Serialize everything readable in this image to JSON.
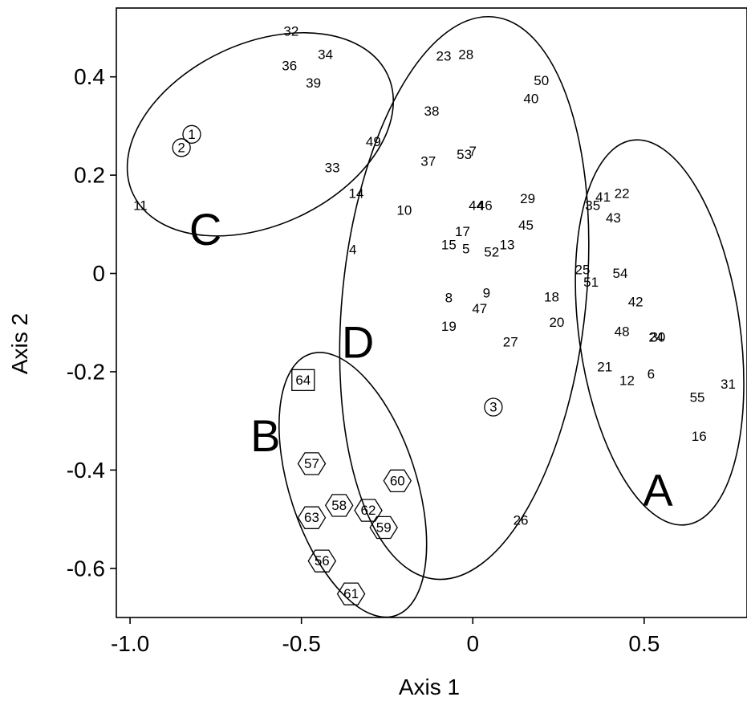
{
  "chart_data": {
    "type": "scatter",
    "title": "",
    "xlabel": "Axis 1",
    "ylabel": "Axis 2",
    "xlim": [
      -1.04,
      0.8
    ],
    "ylim": [
      -0.7,
      0.54
    ],
    "x_ticks": [
      -1.0,
      -0.5,
      0,
      0.5
    ],
    "x_tick_labels": [
      "-1.0",
      "-0.5",
      "0",
      "0.5"
    ],
    "y_ticks": [
      -0.6,
      -0.4,
      -0.2,
      0,
      0.2,
      0.4
    ],
    "y_tick_labels": [
      "-0.6",
      "-0.4",
      "-0.2",
      "0",
      "0.2",
      "0.4"
    ],
    "grid": false,
    "groups": [
      {
        "label": "A",
        "cx": 0.545,
        "cy": -0.12,
        "rx": 0.235,
        "ry": 0.395,
        "angle": -8,
        "label_x": 0.54,
        "label_y": -0.44
      },
      {
        "label": "B",
        "cx": -0.35,
        "cy": -0.43,
        "rx": 0.185,
        "ry": 0.28,
        "angle": -18,
        "label_x": -0.605,
        "label_y": -0.33
      },
      {
        "label": "C",
        "cx": -0.62,
        "cy": 0.283,
        "rx": 0.41,
        "ry": 0.185,
        "angle": -25,
        "label_x": -0.78,
        "label_y": 0.09
      },
      {
        "label": "D",
        "cx": -0.025,
        "cy": -0.05,
        "rx": 0.355,
        "ry": 0.575,
        "angle": 6,
        "label_x": -0.335,
        "label_y": -0.14
      }
    ],
    "points": [
      {
        "label": "1",
        "x": -0.82,
        "y": 0.283,
        "marker": "circle"
      },
      {
        "label": "2",
        "x": -0.85,
        "y": 0.256,
        "marker": "circle"
      },
      {
        "label": "3",
        "x": 0.06,
        "y": -0.272,
        "marker": "circle"
      },
      {
        "label": "4",
        "x": -0.35,
        "y": 0.048,
        "marker": "none"
      },
      {
        "label": "5",
        "x": -0.02,
        "y": 0.05,
        "marker": "none"
      },
      {
        "label": "6",
        "x": 0.52,
        "y": -0.205,
        "marker": "none"
      },
      {
        "label": "7",
        "x": 0.0,
        "y": 0.248,
        "marker": "none"
      },
      {
        "label": "8",
        "x": -0.07,
        "y": -0.05,
        "marker": "none"
      },
      {
        "label": "9",
        "x": 0.04,
        "y": -0.04,
        "marker": "none"
      },
      {
        "label": "10",
        "x": -0.2,
        "y": 0.128,
        "marker": "none"
      },
      {
        "label": "11",
        "x": -0.97,
        "y": 0.138,
        "marker": "none"
      },
      {
        "label": "12",
        "x": 0.45,
        "y": -0.218,
        "marker": "none"
      },
      {
        "label": "13",
        "x": 0.1,
        "y": 0.058,
        "marker": "none"
      },
      {
        "label": "14",
        "x": -0.34,
        "y": 0.163,
        "marker": "none"
      },
      {
        "label": "15",
        "x": -0.07,
        "y": 0.058,
        "marker": "none"
      },
      {
        "label": "16",
        "x": 0.66,
        "y": -0.332,
        "marker": "none"
      },
      {
        "label": "17",
        "x": -0.03,
        "y": 0.085,
        "marker": "none"
      },
      {
        "label": "18",
        "x": 0.23,
        "y": -0.048,
        "marker": "none"
      },
      {
        "label": "19",
        "x": -0.07,
        "y": -0.108,
        "marker": "none"
      },
      {
        "label": "20",
        "x": 0.245,
        "y": -0.1,
        "marker": "none"
      },
      {
        "label": "21",
        "x": 0.385,
        "y": -0.19,
        "marker": "none"
      },
      {
        "label": "22",
        "x": 0.435,
        "y": 0.163,
        "marker": "none"
      },
      {
        "label": "23",
        "x": -0.085,
        "y": 0.442,
        "marker": "none"
      },
      {
        "label": "24",
        "x": 0.535,
        "y": -0.13,
        "marker": "none"
      },
      {
        "label": "25",
        "x": 0.32,
        "y": 0.007,
        "marker": "none"
      },
      {
        "label": "26",
        "x": 0.14,
        "y": -0.502,
        "marker": "none"
      },
      {
        "label": "27",
        "x": 0.11,
        "y": -0.14,
        "marker": "none"
      },
      {
        "label": "28",
        "x": -0.02,
        "y": 0.445,
        "marker": "none"
      },
      {
        "label": "29",
        "x": 0.16,
        "y": 0.152,
        "marker": "none"
      },
      {
        "label": "30",
        "x": 0.54,
        "y": -0.13,
        "marker": "none"
      },
      {
        "label": "31",
        "x": 0.745,
        "y": -0.225,
        "marker": "none"
      },
      {
        "label": "32",
        "x": -0.53,
        "y": 0.493,
        "marker": "none"
      },
      {
        "label": "33",
        "x": -0.41,
        "y": 0.215,
        "marker": "none"
      },
      {
        "label": "34",
        "x": -0.43,
        "y": 0.445,
        "marker": "none"
      },
      {
        "label": "35",
        "x": 0.35,
        "y": 0.138,
        "marker": "none"
      },
      {
        "label": "36",
        "x": -0.535,
        "y": 0.422,
        "marker": "none"
      },
      {
        "label": "37",
        "x": -0.13,
        "y": 0.228,
        "marker": "none"
      },
      {
        "label": "38",
        "x": -0.12,
        "y": 0.33,
        "marker": "none"
      },
      {
        "label": "39",
        "x": -0.465,
        "y": 0.387,
        "marker": "none"
      },
      {
        "label": "40",
        "x": 0.17,
        "y": 0.355,
        "marker": "none"
      },
      {
        "label": "41",
        "x": 0.38,
        "y": 0.155,
        "marker": "none"
      },
      {
        "label": "42",
        "x": 0.475,
        "y": -0.058,
        "marker": "none"
      },
      {
        "label": "43",
        "x": 0.41,
        "y": 0.113,
        "marker": "none"
      },
      {
        "label": "44",
        "x": 0.01,
        "y": 0.138,
        "marker": "none"
      },
      {
        "label": "45",
        "x": 0.155,
        "y": 0.098,
        "marker": "none"
      },
      {
        "label": "46",
        "x": 0.035,
        "y": 0.138,
        "marker": "none"
      },
      {
        "label": "47",
        "x": 0.02,
        "y": -0.072,
        "marker": "none"
      },
      {
        "label": "48",
        "x": 0.435,
        "y": -0.118,
        "marker": "none"
      },
      {
        "label": "49",
        "x": -0.29,
        "y": 0.268,
        "marker": "none"
      },
      {
        "label": "50",
        "x": 0.2,
        "y": 0.392,
        "marker": "none"
      },
      {
        "label": "51",
        "x": 0.345,
        "y": -0.018,
        "marker": "none"
      },
      {
        "label": "52",
        "x": 0.055,
        "y": 0.043,
        "marker": "none"
      },
      {
        "label": "53",
        "x": -0.025,
        "y": 0.242,
        "marker": "none"
      },
      {
        "label": "54",
        "x": 0.43,
        "y": 0.0,
        "marker": "none"
      },
      {
        "label": "55",
        "x": 0.655,
        "y": -0.252,
        "marker": "none"
      },
      {
        "label": "56",
        "x": -0.44,
        "y": -0.585,
        "marker": "hexagon"
      },
      {
        "label": "57",
        "x": -0.47,
        "y": -0.387,
        "marker": "hexagon"
      },
      {
        "label": "58",
        "x": -0.39,
        "y": -0.472,
        "marker": "hexagon"
      },
      {
        "label": "59",
        "x": -0.26,
        "y": -0.517,
        "marker": "hexagon"
      },
      {
        "label": "60",
        "x": -0.22,
        "y": -0.422,
        "marker": "hexagon"
      },
      {
        "label": "61",
        "x": -0.355,
        "y": -0.652,
        "marker": "hexagon"
      },
      {
        "label": "62",
        "x": -0.305,
        "y": -0.482,
        "marker": "hexagon"
      },
      {
        "label": "63",
        "x": -0.47,
        "y": -0.497,
        "marker": "hexagon"
      },
      {
        "label": "64",
        "x": -0.495,
        "y": -0.217,
        "marker": "square"
      }
    ]
  }
}
